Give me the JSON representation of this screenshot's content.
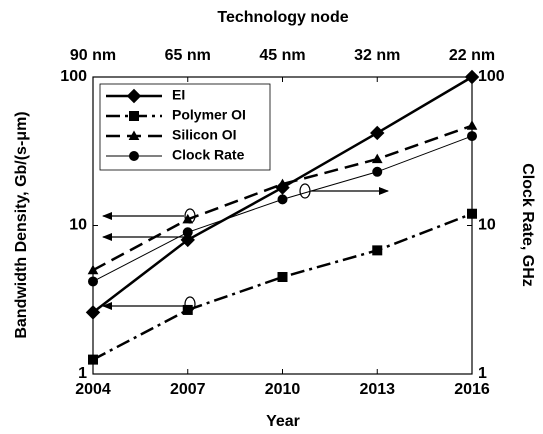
{
  "chart_data": {
    "type": "line",
    "top_axis": {
      "label": "Technology node",
      "categories": [
        "90 nm",
        "65 nm",
        "45 nm",
        "32 nm",
        "22 nm"
      ]
    },
    "xlabel": "Year",
    "ylabel": "Bandwidth Density, Gb/(s-μm)",
    "y2label": "Clock Rate, GHz",
    "x": [
      2004,
      2007,
      2010,
      2013,
      2016
    ],
    "xlim": [
      2004,
      2016
    ],
    "xticks": [
      2004,
      2007,
      2010,
      2013,
      2016
    ],
    "ylim": [
      1,
      100
    ],
    "yticks": [
      1,
      10,
      100
    ],
    "y2lim": [
      1,
      100
    ],
    "y2ticks": [
      1,
      10,
      100
    ],
    "log_scale": true,
    "legend": "upper left",
    "series": [
      {
        "name": "EI",
        "color": "#000000",
        "line_style": "solid",
        "line_width": 2.5,
        "marker": "diamond",
        "values": [
          2.6,
          8.0,
          18,
          42,
          100
        ]
      },
      {
        "name": "Polymer OI",
        "color": "#000000",
        "line_style": "dashdot",
        "line_width": 2.5,
        "marker": "square",
        "values": [
          1.25,
          2.7,
          4.5,
          6.8,
          12
        ]
      },
      {
        "name": "Silicon OI",
        "color": "#000000",
        "line_style": "dashed",
        "line_width": 2.5,
        "marker": "triangle",
        "values": [
          5.0,
          11,
          19,
          28,
          47
        ]
      },
      {
        "name": "Clock Rate",
        "color": "#000000",
        "line_style": "solid",
        "line_width": 1,
        "marker": "circle",
        "axis": "y2",
        "values": [
          4.2,
          9.0,
          15,
          23,
          40
        ]
      }
    ]
  }
}
